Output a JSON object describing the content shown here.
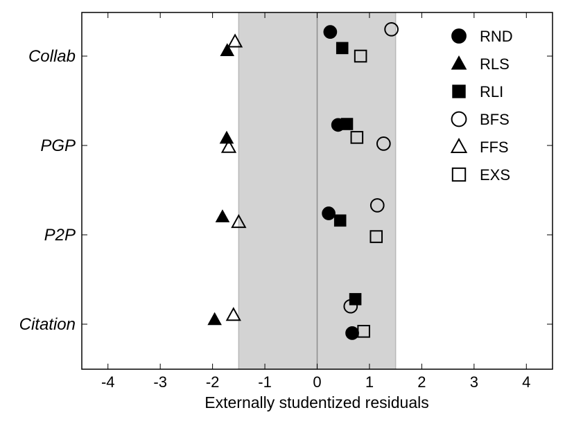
{
  "chart_data": {
    "type": "scatter",
    "title": "",
    "xlabel": "Externally studentized residuals",
    "ylabel": "",
    "xlim": [
      -4.5,
      4.5
    ],
    "xticks": [
      -4,
      -3,
      -2,
      -1,
      0,
      1,
      2,
      3,
      4
    ],
    "categories": [
      "Citation",
      "P2P",
      "PGP",
      "Collab"
    ],
    "shaded_region": [
      -1.5,
      1.5
    ],
    "reference_line": 0,
    "grid": false,
    "legend_position": "top-right",
    "series": [
      {
        "name": "RND",
        "marker": "circle",
        "fill": "filled",
        "points": [
          {
            "category": "Collab",
            "x": 0.25,
            "offset": 0.27
          },
          {
            "category": "PGP",
            "x": 0.4,
            "offset": 0.23
          },
          {
            "category": "P2P",
            "x": 0.22,
            "offset": 0.24
          },
          {
            "category": "Citation",
            "x": 0.67,
            "offset": -0.1
          }
        ]
      },
      {
        "name": "RLS",
        "marker": "triangle",
        "fill": "filled",
        "points": [
          {
            "category": "Collab",
            "x": -1.72,
            "offset": 0.06
          },
          {
            "category": "PGP",
            "x": -1.73,
            "offset": 0.08
          },
          {
            "category": "P2P",
            "x": -1.81,
            "offset": 0.2
          },
          {
            "category": "Citation",
            "x": -1.96,
            "offset": 0.05
          }
        ]
      },
      {
        "name": "RLI",
        "marker": "square",
        "fill": "filled",
        "points": [
          {
            "category": "Collab",
            "x": 0.48,
            "offset": 0.09
          },
          {
            "category": "PGP",
            "x": 0.57,
            "offset": 0.24
          },
          {
            "category": "P2P",
            "x": 0.44,
            "offset": 0.16
          },
          {
            "category": "Citation",
            "x": 0.73,
            "offset": 0.28
          }
        ]
      },
      {
        "name": "BFS",
        "marker": "circle",
        "fill": "open",
        "points": [
          {
            "category": "Collab",
            "x": 1.42,
            "offset": 0.3
          },
          {
            "category": "PGP",
            "x": 1.27,
            "offset": 0.02
          },
          {
            "category": "P2P",
            "x": 1.15,
            "offset": 0.33
          },
          {
            "category": "Citation",
            "x": 0.64,
            "offset": 0.2
          }
        ]
      },
      {
        "name": "FFS",
        "marker": "triangle",
        "fill": "open",
        "points": [
          {
            "category": "Collab",
            "x": -1.57,
            "offset": 0.16
          },
          {
            "category": "PGP",
            "x": -1.69,
            "offset": -0.02
          },
          {
            "category": "P2P",
            "x": -1.5,
            "offset": 0.14
          },
          {
            "category": "Citation",
            "x": -1.6,
            "offset": 0.1
          }
        ]
      },
      {
        "name": "EXS",
        "marker": "square",
        "fill": "open",
        "points": [
          {
            "category": "Collab",
            "x": 0.83,
            "offset": 0.0
          },
          {
            "category": "PGP",
            "x": 0.76,
            "offset": 0.09
          },
          {
            "category": "P2P",
            "x": 1.13,
            "offset": -0.02
          },
          {
            "category": "Citation",
            "x": 0.89,
            "offset": -0.08
          }
        ]
      }
    ]
  }
}
